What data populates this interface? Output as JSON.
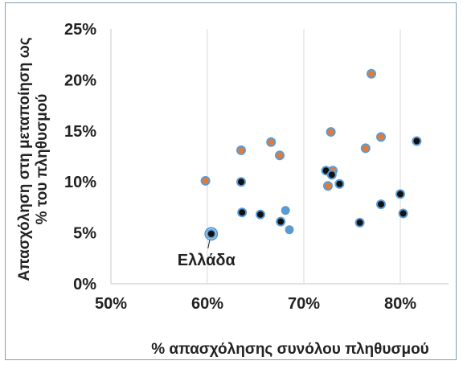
{
  "chart_data": {
    "type": "scatter",
    "title": "",
    "xlabel": "% απασχόλησης συνόλου πληθυσμού",
    "ylabel_lines": [
      "Απασχόληση στη μεταποίηση ως",
      "% του πληθυσμού"
    ],
    "xlim": [
      0.5,
      0.85
    ],
    "ylim": [
      0,
      0.25
    ],
    "x_ticks": [
      {
        "value": 0.5,
        "label": "50%"
      },
      {
        "value": 0.6,
        "label": "60%"
      },
      {
        "value": 0.7,
        "label": "70%"
      },
      {
        "value": 0.8,
        "label": "80%"
      }
    ],
    "y_ticks": [
      {
        "value": 0,
        "label": "0%"
      },
      {
        "value": 0.05,
        "label": "5%"
      },
      {
        "value": 0.1,
        "label": "10%"
      },
      {
        "value": 0.15,
        "label": "15%"
      },
      {
        "value": 0.2,
        "label": "20%"
      },
      {
        "value": 0.25,
        "label": "25%"
      }
    ],
    "grid": {
      "vertical": true,
      "horizontal": false
    },
    "colors": {
      "orange": "#e07b39",
      "black": "#111111",
      "blue": "#5b9bd5",
      "outline": "#5b9bd5",
      "grid": "#d9d9d9"
    },
    "series": [
      {
        "group": "orange",
        "points": [
          {
            "x": 0.598,
            "y": 0.101
          },
          {
            "x": 0.635,
            "y": 0.131
          },
          {
            "x": 0.666,
            "y": 0.139
          },
          {
            "x": 0.675,
            "y": 0.126
          },
          {
            "x": 0.728,
            "y": 0.149
          },
          {
            "x": 0.73,
            "y": 0.111
          },
          {
            "x": 0.725,
            "y": 0.096
          },
          {
            "x": 0.764,
            "y": 0.133
          },
          {
            "x": 0.78,
            "y": 0.144
          },
          {
            "x": 0.77,
            "y": 0.206
          }
        ]
      },
      {
        "group": "black",
        "points": [
          {
            "x": 0.604,
            "y": 0.049
          },
          {
            "x": 0.635,
            "y": 0.1
          },
          {
            "x": 0.636,
            "y": 0.07
          },
          {
            "x": 0.655,
            "y": 0.068
          },
          {
            "x": 0.676,
            "y": 0.061
          },
          {
            "x": 0.723,
            "y": 0.111
          },
          {
            "x": 0.729,
            "y": 0.107
          },
          {
            "x": 0.737,
            "y": 0.098
          },
          {
            "x": 0.758,
            "y": 0.06
          },
          {
            "x": 0.78,
            "y": 0.078
          },
          {
            "x": 0.8,
            "y": 0.088
          },
          {
            "x": 0.803,
            "y": 0.069
          },
          {
            "x": 0.817,
            "y": 0.14
          }
        ]
      },
      {
        "group": "blue",
        "points": [
          {
            "x": 0.681,
            "y": 0.072
          },
          {
            "x": 0.685,
            "y": 0.053
          }
        ]
      }
    ],
    "annotations": [
      {
        "text": "Ελλάδα",
        "x": 0.604,
        "y": 0.049
      }
    ]
  }
}
